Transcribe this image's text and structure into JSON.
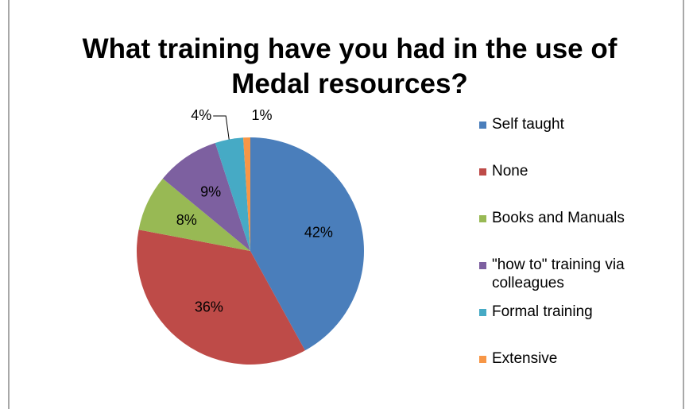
{
  "chart_data": {
    "type": "pie",
    "title": "What training have you had in the use of Medal resources?",
    "categories": [
      "Self taught",
      "None",
      "Books and Manuals",
      "\"how to\" training via colleagues",
      "Formal training",
      "Extensive"
    ],
    "values": [
      42,
      36,
      8,
      9,
      4,
      1
    ],
    "value_labels": [
      "42%",
      "36%",
      "8%",
      "9%",
      "4%",
      "1%"
    ],
    "colors": [
      "#4a7ebb",
      "#be4b48",
      "#98b954",
      "#7d60a0",
      "#46aac5",
      "#f79646"
    ],
    "legend": "right"
  }
}
